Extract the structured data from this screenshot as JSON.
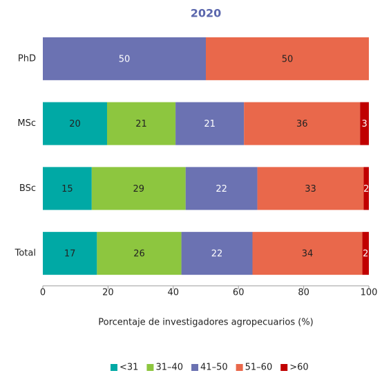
{
  "chart_data": {
    "type": "stacked-bar-horizontal",
    "title": "2020",
    "categories": [
      "PhD",
      "MSc",
      "BSc",
      "Total"
    ],
    "series": [
      {
        "name": "<31",
        "color": "#00a9a5",
        "values": [
          null,
          19.7,
          15.0,
          16.6
        ],
        "value_labels": [
          null,
          "20",
          "15",
          "17"
        ]
      },
      {
        "name": "31–40",
        "color": "#8dc63f",
        "values": [
          null,
          21.0,
          28.8,
          25.9
        ],
        "value_labels": [
          null,
          "21",
          "29",
          "26"
        ]
      },
      {
        "name": "41–50",
        "color": "#6b72b2",
        "values": [
          50,
          21.0,
          22.0,
          21.8
        ],
        "value_labels": [
          "50",
          "21",
          "22",
          "22"
        ]
      },
      {
        "name": "51–60",
        "color": "#e9684b",
        "values": [
          50,
          35.6,
          32.6,
          33.7
        ],
        "value_labels": [
          "50",
          "36",
          "33",
          "34"
        ]
      },
      {
        "name": ">60",
        "color": "#c00000",
        "values": [
          null,
          2.7,
          1.6,
          2.0
        ],
        "value_labels": [
          null,
          "3",
          "2",
          "2"
        ]
      }
    ],
    "xlim": [
      0,
      100
    ],
    "xticks": [
      0,
      20,
      40,
      60,
      80,
      100
    ],
    "xlabel": "Porcentaje de investigadores agropecuarios (%)",
    "legend": "bottom"
  }
}
